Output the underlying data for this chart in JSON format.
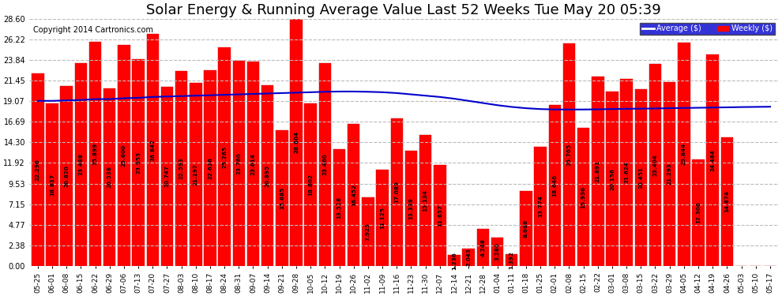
{
  "title": "Solar Energy & Running Average Value Last 52 Weeks Tue May 20 05:39",
  "copyright": "Copyright 2014 Cartronics.com",
  "categories": [
    "05-25",
    "06-01",
    "06-08",
    "06-15",
    "06-22",
    "06-29",
    "07-06",
    "07-13",
    "07-20",
    "07-27",
    "08-03",
    "08-10",
    "08-17",
    "08-24",
    "08-31",
    "09-07",
    "09-14",
    "09-21",
    "09-28",
    "10-05",
    "10-12",
    "10-19",
    "10-26",
    "11-02",
    "11-09",
    "11-16",
    "11-23",
    "11-30",
    "12-07",
    "12-14",
    "12-21",
    "12-28",
    "01-04",
    "01-11",
    "01-18",
    "01-25",
    "02-01",
    "02-08",
    "02-15",
    "02-22",
    "03-01",
    "03-08",
    "03-15",
    "03-22",
    "03-29",
    "04-05",
    "04-12",
    "04-19",
    "04-26",
    "05-03",
    "05-10",
    "05-17"
  ],
  "weekly_values": [
    22.296,
    18.817,
    20.82,
    23.488,
    25.899,
    20.538,
    25.6,
    23.953,
    26.842,
    20.747,
    22.593,
    21.197,
    22.626,
    25.265,
    23.76,
    23.614,
    20.895,
    15.685,
    28.604,
    18.802,
    23.46,
    13.518,
    16.452,
    7.925,
    11.125,
    17.089,
    13.339,
    15.134,
    11.657,
    1.236,
    2.043,
    4.248,
    3.28,
    1.392,
    8.686,
    13.774,
    18.64,
    25.765,
    15.936,
    21.891,
    20.156,
    21.624,
    20.451,
    23.404,
    21.293,
    25.844,
    12.306,
    24.484,
    14.874,
    0.0,
    0.0,
    0.0
  ],
  "avg_values": [
    19.1,
    19.1,
    19.15,
    19.2,
    19.3,
    19.3,
    19.4,
    19.45,
    19.55,
    19.6,
    19.65,
    19.7,
    19.75,
    19.8,
    19.85,
    19.9,
    19.95,
    20.0,
    20.05,
    20.1,
    20.15,
    20.18,
    20.18,
    20.15,
    20.1,
    20.0,
    19.85,
    19.7,
    19.55,
    19.35,
    19.1,
    18.85,
    18.6,
    18.4,
    18.25,
    18.15,
    18.1,
    18.1,
    18.1,
    18.12,
    18.15,
    18.18,
    18.2,
    18.22,
    18.25,
    18.28,
    18.3,
    18.33,
    18.35,
    18.38,
    18.4,
    18.42
  ],
  "bar_color": "#ff0000",
  "avg_line_color": "#0000cc",
  "background_color": "#ffffff",
  "plot_background": "#ffffff",
  "grid_color": "#bbbbbb",
  "yticks": [
    0.0,
    2.38,
    4.77,
    7.15,
    9.53,
    11.92,
    14.3,
    16.69,
    19.07,
    21.45,
    23.84,
    26.22,
    28.6
  ],
  "ylim": [
    0,
    28.6
  ],
  "legend_avg_color": "#0000cc",
  "legend_weekly_color": "#ff0000",
  "title_fontsize": 13,
  "copyright_fontsize": 7,
  "value_fontsize": 5.2,
  "xlabel_fontsize": 6.5,
  "ylabel_fontsize": 7
}
